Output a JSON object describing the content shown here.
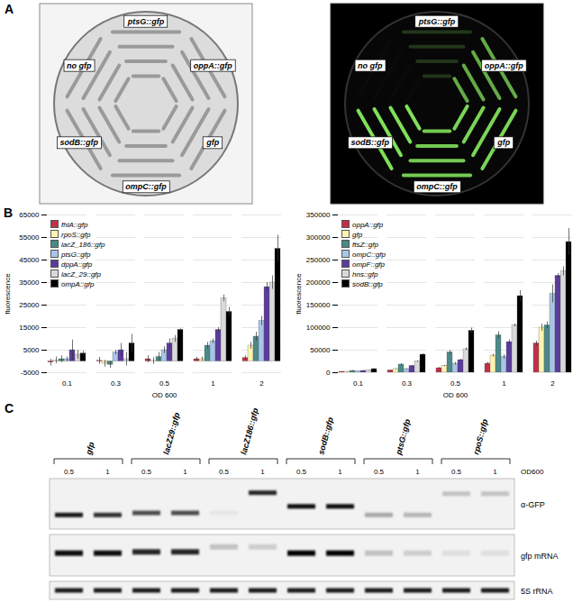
{
  "panel_labels": [
    "A",
    "B",
    "C"
  ],
  "panel_a": {
    "sectors": [
      {
        "label": "ptsG::gfp",
        "brightness": 0.2
      },
      {
        "label": "oppA::gfp",
        "brightness": 0.75
      },
      {
        "label": "gfp",
        "brightness": 0.95
      },
      {
        "label": "ompC::gfp",
        "brightness": 0.9
      },
      {
        "label": "sodB::gfp",
        "brightness": 1
      },
      {
        "label": "no gfp",
        "brightness": 0
      }
    ]
  },
  "chart_data": [
    {
      "type": "bar",
      "x_label": "OD 600",
      "y_label": "fluorescence",
      "categories": [
        "0.1",
        "0.3",
        "0.5",
        "1",
        "2"
      ],
      "ylim": [
        -5000,
        65000
      ],
      "yticks": [
        -5000,
        5000,
        15000,
        25000,
        35000,
        45000,
        55000,
        65000
      ],
      "grid": true,
      "legend": "top-left",
      "series": [
        {
          "name": "fhlA::gfp",
          "color": "#c0304a",
          "values": [
            -500,
            300,
            1000,
            1000,
            1500
          ],
          "errors": [
            1500,
            1500,
            1500,
            800,
            1000
          ]
        },
        {
          "name": "rpoS::gfp",
          "color": "#fff3b0",
          "values": [
            500,
            -1000,
            200,
            1000,
            7000
          ],
          "errors": [
            1500,
            1500,
            1500,
            1000,
            1500
          ]
        },
        {
          "name": "lacZ_186::gfp",
          "color": "#4a8a88",
          "values": [
            1000,
            -1500,
            2000,
            7000,
            11000
          ],
          "errors": [
            1500,
            1500,
            2000,
            1500,
            2000
          ]
        },
        {
          "name": "ptsG::gfp",
          "color": "#a9c4e8",
          "values": [
            1000,
            4000,
            5000,
            9000,
            18000
          ],
          "errors": [
            1000,
            1000,
            1500,
            1000,
            2000
          ]
        },
        {
          "name": "dppA::gfp",
          "color": "#5a3c9c",
          "values": [
            5000,
            5000,
            8000,
            14000,
            33000
          ],
          "errors": [
            4500,
            3000,
            2000,
            1000,
            2000
          ]
        },
        {
          "name": "lacZ_29::gfp",
          "color": "#d9d9d9",
          "values": [
            3000,
            1000,
            10000,
            28000,
            35000
          ],
          "errors": [
            2000,
            3000,
            1500,
            1500,
            3000
          ]
        },
        {
          "name": "ompA::gfp",
          "color": "#000000",
          "values": [
            3500,
            8000,
            14000,
            22000,
            50000
          ],
          "errors": [
            1000,
            4000,
            500,
            2000,
            6000
          ]
        }
      ]
    },
    {
      "type": "bar",
      "x_label": "OD 600",
      "y_label": "fluorescence",
      "categories": [
        "0.1",
        "0.3",
        "0.5",
        "1",
        "2"
      ],
      "ylim": [
        0,
        350000
      ],
      "yticks": [
        0,
        50000,
        100000,
        150000,
        200000,
        250000,
        300000,
        350000
      ],
      "grid": true,
      "legend": "top-left",
      "series": [
        {
          "name": "oppA::gfp",
          "color": "#c0304a",
          "values": [
            2000,
            5000,
            10000,
            20000,
            65000
          ],
          "errors": [
            500,
            1000,
            1500,
            3000,
            5000
          ]
        },
        {
          "name": "gfp",
          "color": "#fff3b0",
          "values": [
            2000,
            8000,
            15000,
            38000,
            100000
          ],
          "errors": [
            500,
            1000,
            1500,
            3000,
            8000
          ]
        },
        {
          "name": "ftsZ::gfp",
          "color": "#4a8a88",
          "values": [
            4000,
            18000,
            45000,
            83000,
            105000
          ],
          "errors": [
            1000,
            2000,
            5000,
            8000,
            8000
          ]
        },
        {
          "name": "ompC::gfp",
          "color": "#a9c4e8",
          "values": [
            3000,
            8000,
            20000,
            35000,
            175000
          ],
          "errors": [
            500,
            1000,
            3000,
            5000,
            20000
          ]
        },
        {
          "name": "ompF::gfp",
          "color": "#5a3c9c",
          "values": [
            4000,
            15000,
            28000,
            68000,
            215000
          ],
          "errors": [
            1000,
            1500,
            2000,
            5000,
            5000
          ]
        },
        {
          "name": "hns::gfp",
          "color": "#d9d9d9",
          "values": [
            5000,
            25000,
            52000,
            105000,
            225000
          ],
          "errors": [
            500,
            1500,
            3000,
            3000,
            10000
          ]
        },
        {
          "name": "sodB::gfp",
          "color": "#000000",
          "values": [
            8000,
            40000,
            93000,
            170000,
            290000
          ],
          "errors": [
            1000,
            2000,
            6000,
            12000,
            30000
          ]
        }
      ]
    }
  ],
  "panel_c": {
    "constructs": [
      "gfp",
      "lacZ29::gfp",
      "lacZ186::gfp",
      "sodB::gfp",
      "ptsG::gfp",
      "rpoS::gfp"
    ],
    "od_values": [
      "0.5",
      "1"
    ],
    "od_label": "OD600",
    "blots": [
      {
        "label": "α-GFP",
        "intensity": [
          0.9,
          0.8,
          0.7,
          0.7,
          0.05,
          0.85,
          0.95,
          0.95,
          0.3,
          0.25,
          0.2,
          0.2
        ],
        "position": [
          0.72,
          0.72,
          0.68,
          0.68,
          0.68,
          0.28,
          0.55,
          0.55,
          0.72,
          0.72,
          0.3,
          0.3
        ]
      },
      {
        "label": "gfp mRNA",
        "intensity": [
          0.95,
          0.95,
          0.85,
          0.85,
          0.2,
          0.15,
          1,
          1,
          0.2,
          0.15,
          0.08,
          0.08
        ],
        "position": [
          0.45,
          0.45,
          0.42,
          0.42,
          0.3,
          0.3,
          0.45,
          0.45,
          0.45,
          0.45,
          0.45,
          0.45
        ]
      },
      {
        "label": "5S rRNA",
        "intensity": [
          0.9,
          0.9,
          0.9,
          0.9,
          0.9,
          0.9,
          0.9,
          0.9,
          0.9,
          0.9,
          0.9,
          0.9
        ],
        "position": [
          0.5,
          0.5,
          0.5,
          0.5,
          0.5,
          0.5,
          0.5,
          0.5,
          0.5,
          0.5,
          0.5,
          0.5
        ]
      }
    ]
  }
}
